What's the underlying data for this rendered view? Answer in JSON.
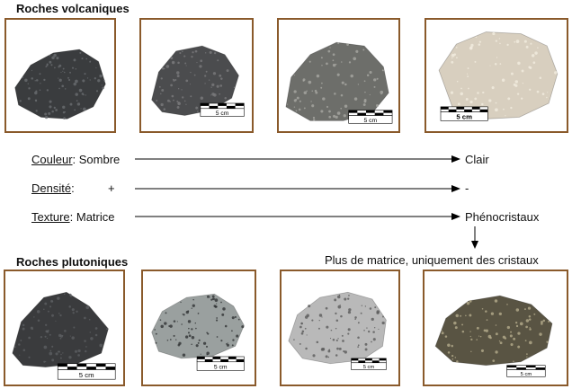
{
  "volcanic": {
    "title": "Roches volcaniques",
    "rocks": [
      {
        "color": "#3a3c3e",
        "speckle": "#6a6d70",
        "scale": ""
      },
      {
        "color": "#4b4c4e",
        "speckle": "#7a7b7d",
        "scale": "5 cm"
      },
      {
        "color": "#6d6e6a",
        "speckle": "#a7a8a3",
        "scale": "5 cm"
      },
      {
        "color": "#d8cfbf",
        "speckle": "#f2ece0",
        "scale": "5 cm"
      }
    ]
  },
  "gradient": {
    "rows": [
      {
        "label": "Couleur",
        "start": "Sombre",
        "end": "Clair"
      },
      {
        "label": "Densité",
        "start": "+",
        "end": "-"
      },
      {
        "label": "Texture",
        "start": "Matrice",
        "end": "Phénocristaux"
      }
    ],
    "note": "Plus de matrice, uniquement des cristaux"
  },
  "plutonic": {
    "title": "Roches plutoniques",
    "rocks": [
      {
        "color": "#3a3b3d",
        "speckle": "#5d5f62",
        "scale": "5 cm"
      },
      {
        "color": "#9aa09f",
        "speckle": "#2f3233",
        "scale": "5 cm"
      },
      {
        "color": "#b9b9b9",
        "speckle": "#5a5a5a",
        "scale": "5 cm"
      },
      {
        "color": "#595443",
        "speckle": "#b4ab8c",
        "scale": "5 cm"
      }
    ]
  }
}
